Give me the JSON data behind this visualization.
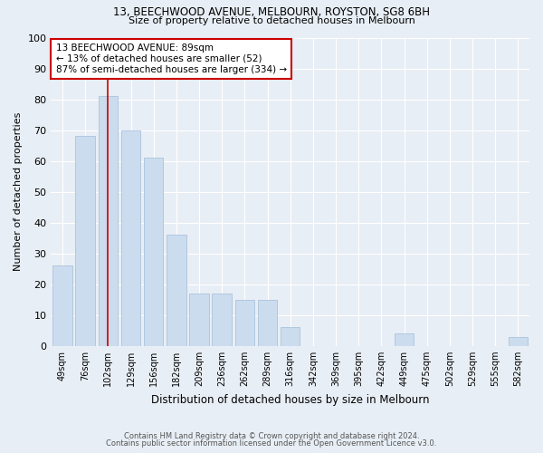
{
  "title1": "13, BEECHWOOD AVENUE, MELBOURN, ROYSTON, SG8 6BH",
  "title2": "Size of property relative to detached houses in Melbourn",
  "xlabel": "Distribution of detached houses by size in Melbourn",
  "ylabel": "Number of detached properties",
  "categories": [
    "49sqm",
    "76sqm",
    "102sqm",
    "129sqm",
    "156sqm",
    "182sqm",
    "209sqm",
    "236sqm",
    "262sqm",
    "289sqm",
    "316sqm",
    "342sqm",
    "369sqm",
    "395sqm",
    "422sqm",
    "449sqm",
    "475sqm",
    "502sqm",
    "529sqm",
    "555sqm",
    "582sqm"
  ],
  "values": [
    26,
    68,
    81,
    70,
    61,
    36,
    17,
    17,
    15,
    15,
    6,
    0,
    0,
    0,
    0,
    4,
    0,
    0,
    0,
    0,
    3
  ],
  "bar_color": "#ccdcef",
  "bar_edge_color": "#a0bcd8",
  "highlight_index": 2,
  "vline_color": "#cc0000",
  "annotation_text": "13 BEECHWOOD AVENUE: 89sqm\n← 13% of detached houses are smaller (52)\n87% of semi-detached houses are larger (334) →",
  "annotation_box_color": "#ffffff",
  "annotation_box_edge": "#cc0000",
  "footnote1": "Contains HM Land Registry data © Crown copyright and database right 2024.",
  "footnote2": "Contains public sector information licensed under the Open Government Licence v3.0.",
  "bg_color": "#e8eef5",
  "plot_bg_color": "#e8eef5",
  "grid_color": "#ffffff",
  "ylim": [
    0,
    100
  ],
  "yticks": [
    0,
    10,
    20,
    30,
    40,
    50,
    60,
    70,
    80,
    90,
    100
  ]
}
